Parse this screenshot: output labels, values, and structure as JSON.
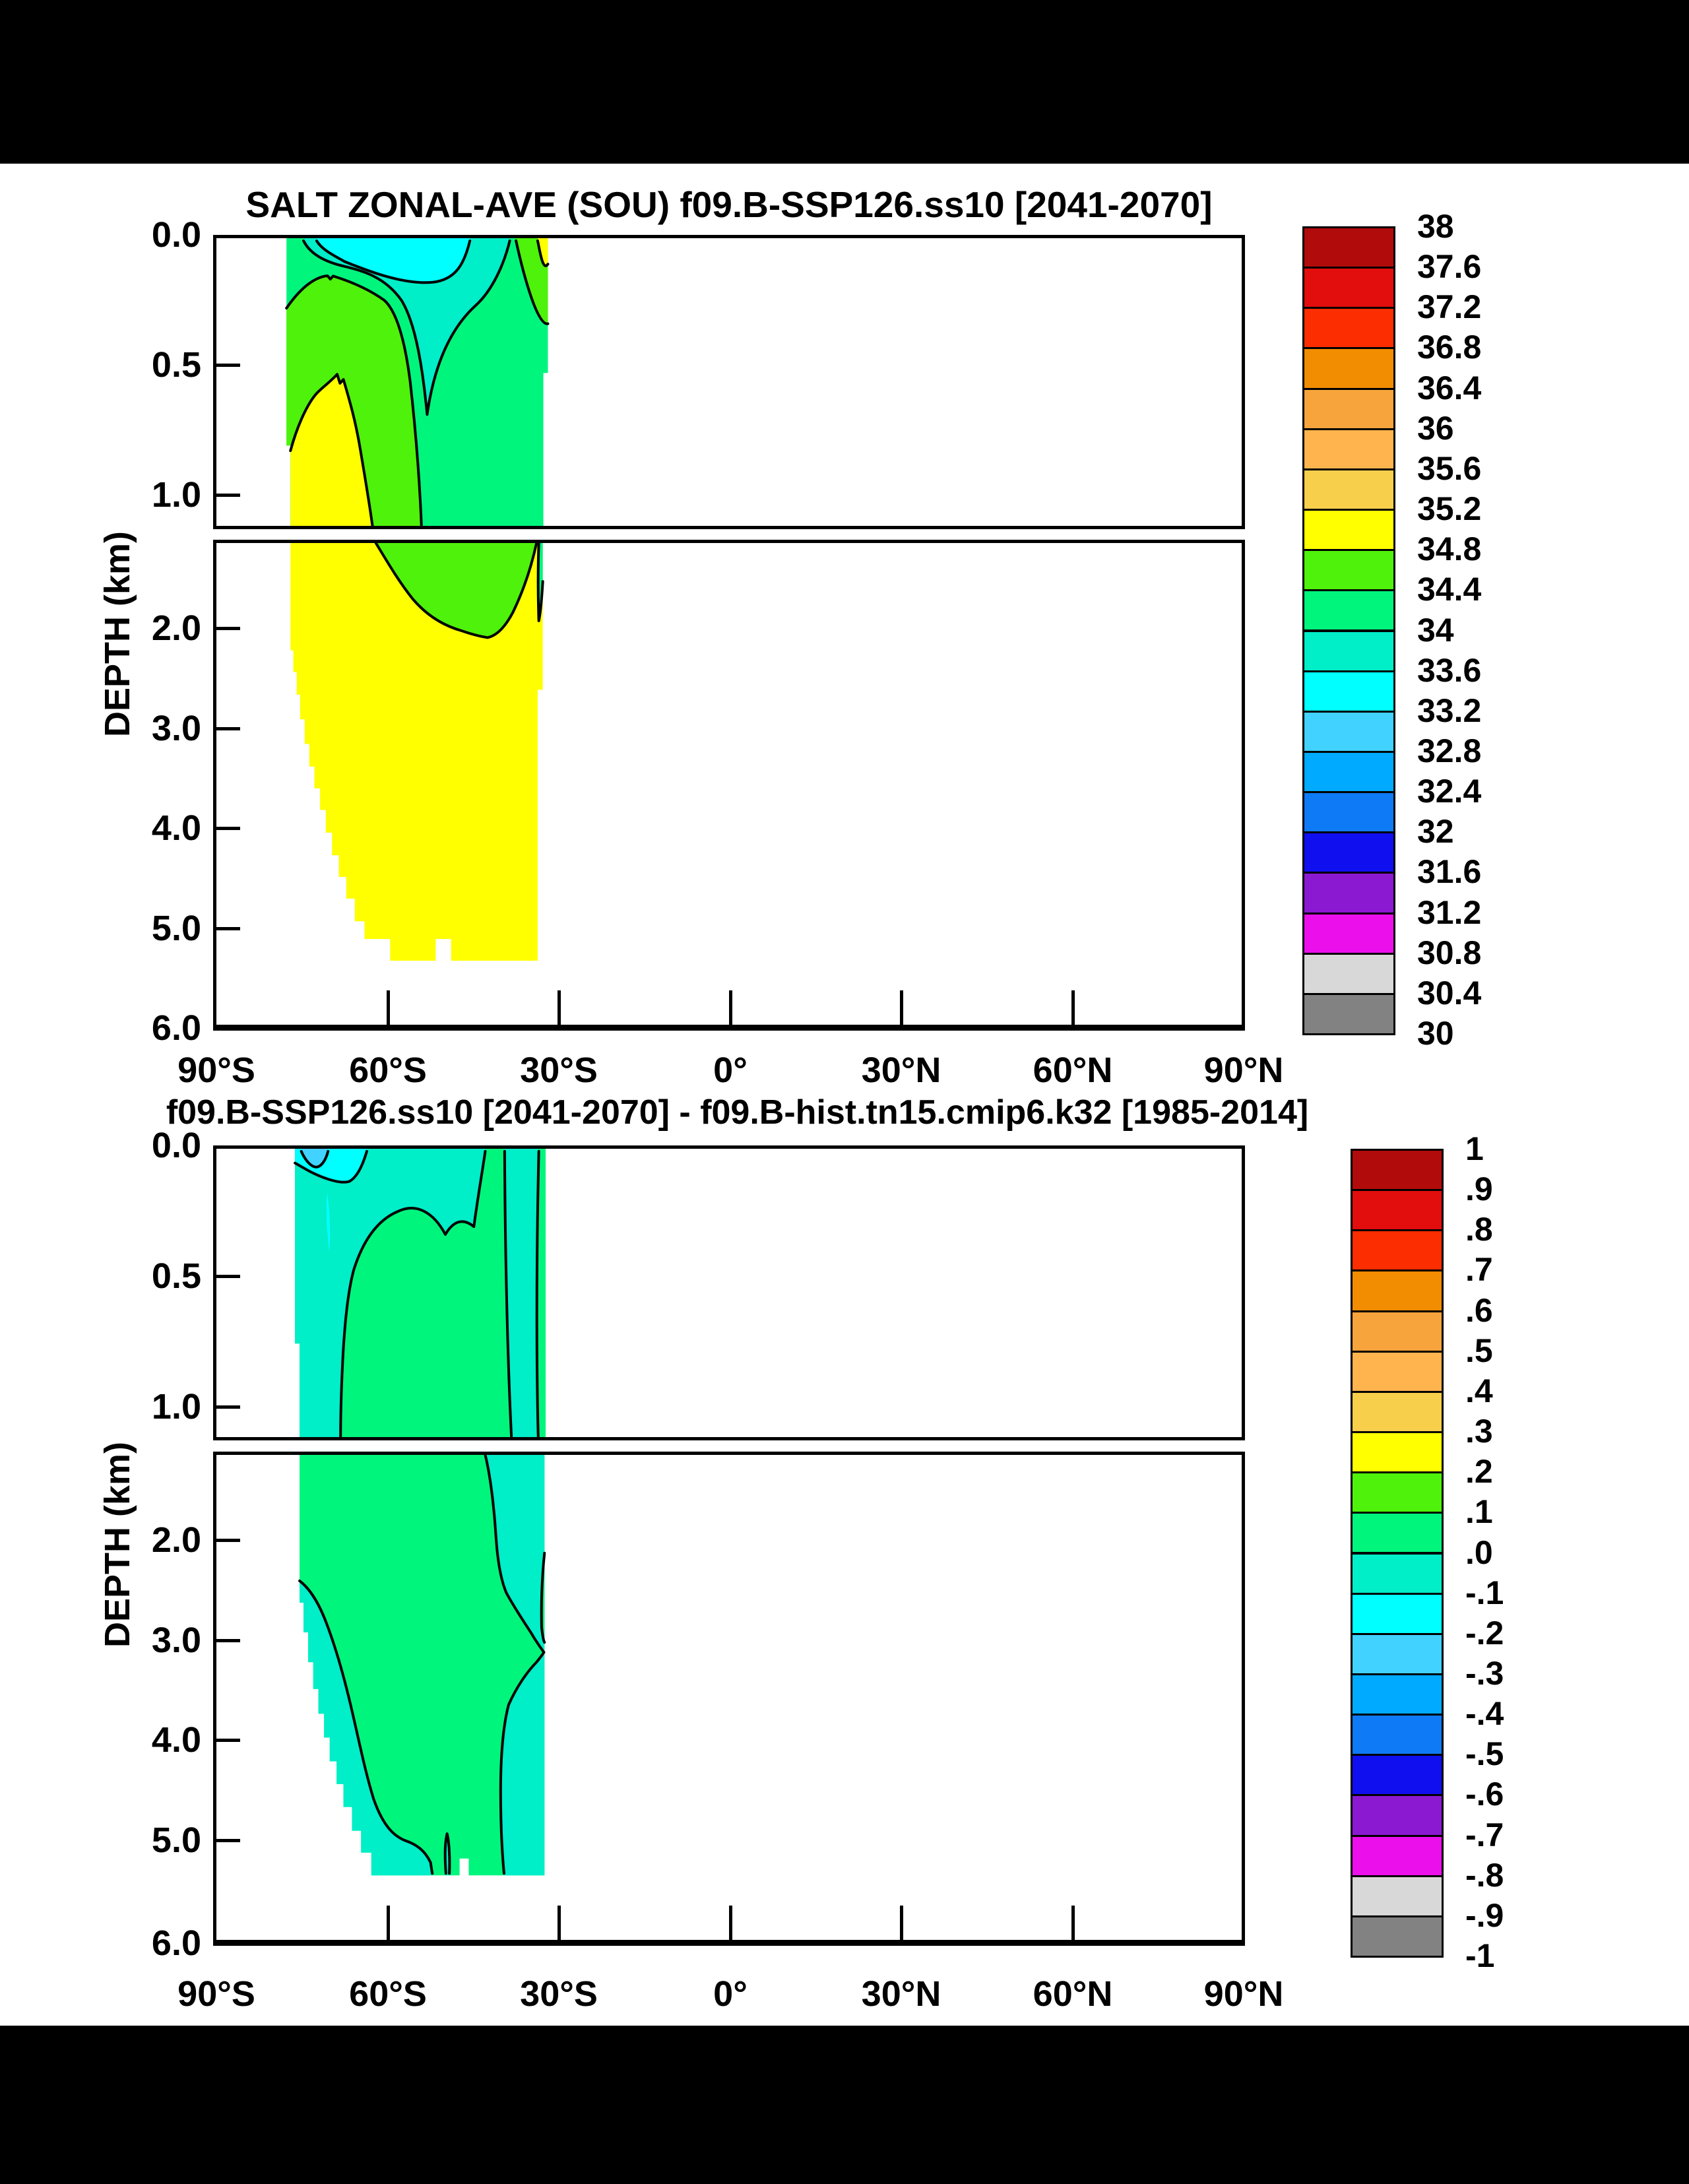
{
  "figures": [
    {
      "title": "SALT ZONAL-AVE (SOU) f09.B-SSP126.ss10 [2041-2070]",
      "ylabel": "DEPTH (km)",
      "x_ticks": [
        "90°S",
        "60°S",
        "30°S",
        "0°",
        "30°N",
        "60°N",
        "90°N"
      ],
      "y_ticks_upper": [
        "0.0",
        "0.5",
        "1.0"
      ],
      "y_ticks_lower": [
        "2.0",
        "3.0",
        "4.0",
        "5.0",
        "6.0"
      ],
      "colorbar_labels": [
        "38",
        "37.6",
        "37.2",
        "36.8",
        "36.4",
        "36",
        "35.6",
        "35.2",
        "34.8",
        "34.4",
        "34",
        "33.6",
        "33.2",
        "32.8",
        "32.4",
        "32",
        "31.6",
        "31.2",
        "30.8",
        "30.4",
        "30"
      ]
    },
    {
      "title": "f09.B-SSP126.ss10 [2041-2070] - f09.B-hist.tn15.cmip6.k32 [1985-2014]",
      "ylabel": "DEPTH (km)",
      "x_ticks": [
        "90°S",
        "60°S",
        "30°S",
        "0°",
        "30°N",
        "60°N",
        "90°N"
      ],
      "y_ticks_upper": [
        "0.0",
        "0.5",
        "1.0"
      ],
      "y_ticks_lower": [
        "2.0",
        "3.0",
        "4.0",
        "5.0",
        "6.0"
      ],
      "colorbar_labels": [
        "1",
        ".9",
        ".8",
        ".7",
        ".6",
        ".5",
        ".4",
        ".3",
        ".2",
        ".1",
        ".0",
        "-.1",
        "-.2",
        "-.3",
        "-.4",
        "-.5",
        "-.6",
        "-.7",
        "-.8",
        "-.9",
        "-1"
      ]
    }
  ],
  "palette": [
    "#b20b0b",
    "#e20d0d",
    "#fc2d00",
    "#f28c00",
    "#f7a43c",
    "#ffb44e",
    "#f8cf4b",
    "#ffff00",
    "#4ef20a",
    "#00f57d",
    "#00eec8",
    "#00ffff",
    "#41d2ff",
    "#00aaff",
    "#0f7af5",
    "#0f0ff0",
    "#8c19d2",
    "#eb0feb",
    "#d8d8d8",
    "#828282"
  ],
  "region_colors": {
    "yellow": "#ffff00",
    "green": "#4ef20a",
    "spring_green": "#00f57d",
    "turquoise": "#00eec8",
    "cyan": "#00ffff",
    "sky_blue": "#41d2ff",
    "white": "#ffffff"
  },
  "chart_data": [
    {
      "type": "area",
      "subtype": "filled-contour latitude-depth section",
      "title": "SALT ZONAL-AVE (SOU) f09.B-SSP126.ss10 [2041-2070]",
      "ylabel": "DEPTH (km)",
      "xlim_deg_lat": [
        -90,
        90
      ],
      "x_tick_values": [
        -90,
        -60,
        -30,
        0,
        30,
        60,
        90
      ],
      "ylim_km": [
        0,
        6
      ],
      "broken_axis_split_km": 1.11,
      "colorbar_range": [
        30,
        38
      ],
      "colorbar_step": 0.4,
      "legend_position": "right",
      "grid": false,
      "data_extent": {
        "latitude": [
          -78,
          -32
        ],
        "depth_km": [
          0,
          5.4
        ]
      },
      "visible_bands": [
        {
          "band": "34.8-35.2",
          "color": "yellow",
          "where": "interior below ~0.55 km from 77S to 33S down to seafloor ~5.4 km; tiny surface patch at 33S"
        },
        {
          "band": "34.4-34.8",
          "color": "green",
          "where": "upper-left mass ~0.15-2.05 km, tongue pinching off near 43S at 2.05 km; surface patch 37S-32S"
        },
        {
          "band": "34.0-34.4",
          "color": "spring_green",
          "where": "thin strip along 78S edge and broad column 52S-32S from surface to ~1.9 km"
        },
        {
          "band": "33.6-34.0",
          "color": "turquoise",
          "where": "surface layer 75S-39S reaching ~0.7 km near 53S"
        },
        {
          "band": "33.2-33.6",
          "color": "cyan",
          "where": "surface blob 72S-46S, 0-0.17 km"
        }
      ],
      "seafloor": "staircase topography rising from 5.4 km at 45S toward 77S at ~2.2 km; small white notch in floor near 49S"
    },
    {
      "type": "area",
      "subtype": "filled-contour latitude-depth difference section",
      "title": "f09.B-SSP126.ss10 [2041-2070] - f09.B-hist.tn15.cmip6.k32 [1985-2014]",
      "ylabel": "DEPTH (km)",
      "xlim_deg_lat": [
        -90,
        90
      ],
      "x_tick_values": [
        -90,
        -60,
        -30,
        0,
        30,
        60,
        90
      ],
      "ylim_km": [
        0,
        6
      ],
      "broken_axis_split_km": 1.11,
      "colorbar_range": [
        -1,
        1
      ],
      "colorbar_step": 0.1,
      "legend_position": "right",
      "grid": false,
      "data_extent": {
        "latitude": [
          -76,
          -32
        ],
        "depth_km": [
          0,
          5.4
        ]
      },
      "visible_bands": [
        {
          "band": "0.0-0.1",
          "color": "spring_green",
          "where": "dominant over most of the section"
        },
        {
          "band": "-0.1-0.0",
          "color": "turquoise",
          "where": "upper-southwest wedge to ~1.1 km, column 40S-34S full upper panel, deep southeast region 3.1-5.4 km, band along staircase seafloor, small finger near 49S at 5.0-5.4 km"
        },
        {
          "band": "-0.2--0.1",
          "color": "cyan",
          "where": "surface band 76S-64S (0-0.15 km) with small closed loop near 70S at 0.2-0.4 km"
        },
        {
          "band": "-0.3--0.2",
          "color": "sky_blue",
          "where": "small surface patch 75S-70S"
        }
      ],
      "seafloor": "same staircase topography; white notch in floor near 46S"
    }
  ]
}
